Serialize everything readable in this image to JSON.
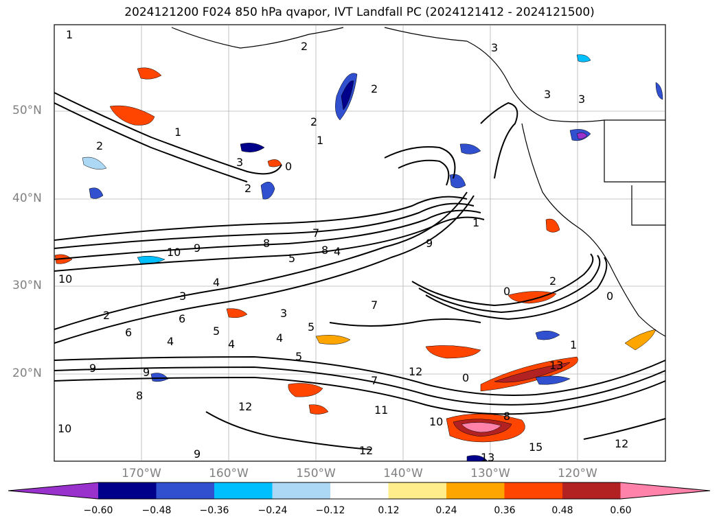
{
  "title": "2024121200 F024 850 hPa qvapor, IVT Landfall PC (2024121412 - 2024121500)",
  "map": {
    "lat_labels": [
      "50°N",
      "40°N",
      "30°N",
      "20°N"
    ],
    "lon_labels": [
      "170°W",
      "160°W",
      "150°W",
      "140°W",
      "130°W",
      "120°W"
    ],
    "contour_labels": [
      "1",
      "2",
      "2",
      "3",
      "2",
      "1",
      "2",
      "3",
      "2",
      "1",
      "3",
      "3",
      "0",
      "1",
      "2",
      "8",
      "7",
      "10",
      "9",
      "9",
      "8",
      "5",
      "4",
      "10",
      "4",
      "3",
      "6",
      "5",
      "4",
      "3",
      "2",
      "5",
      "4",
      "4",
      "5",
      "6",
      "9",
      "9",
      "8",
      "10",
      "7",
      "11",
      "10",
      "12",
      "9",
      "13",
      "12",
      "0",
      "7",
      "0",
      "12",
      "13",
      "15",
      "1",
      "12",
      "8",
      "0"
    ],
    "colors": {
      "contour": "#000000",
      "grid": "#808080",
      "coast": "#000000"
    }
  },
  "colorbar": {
    "ticks": [
      "−0.60",
      "−0.48",
      "−0.36",
      "−0.24",
      "−0.12",
      "0.12",
      "0.24",
      "0.36",
      "0.48",
      "0.60"
    ],
    "colors": [
      "#9932cc",
      "#00008b",
      "#3050d0",
      "#00bfff",
      "#add8f5",
      "#ffffff",
      "#ffec8b",
      "#ffa500",
      "#ff4500",
      "#b22222",
      "#ff82ab"
    ]
  }
}
